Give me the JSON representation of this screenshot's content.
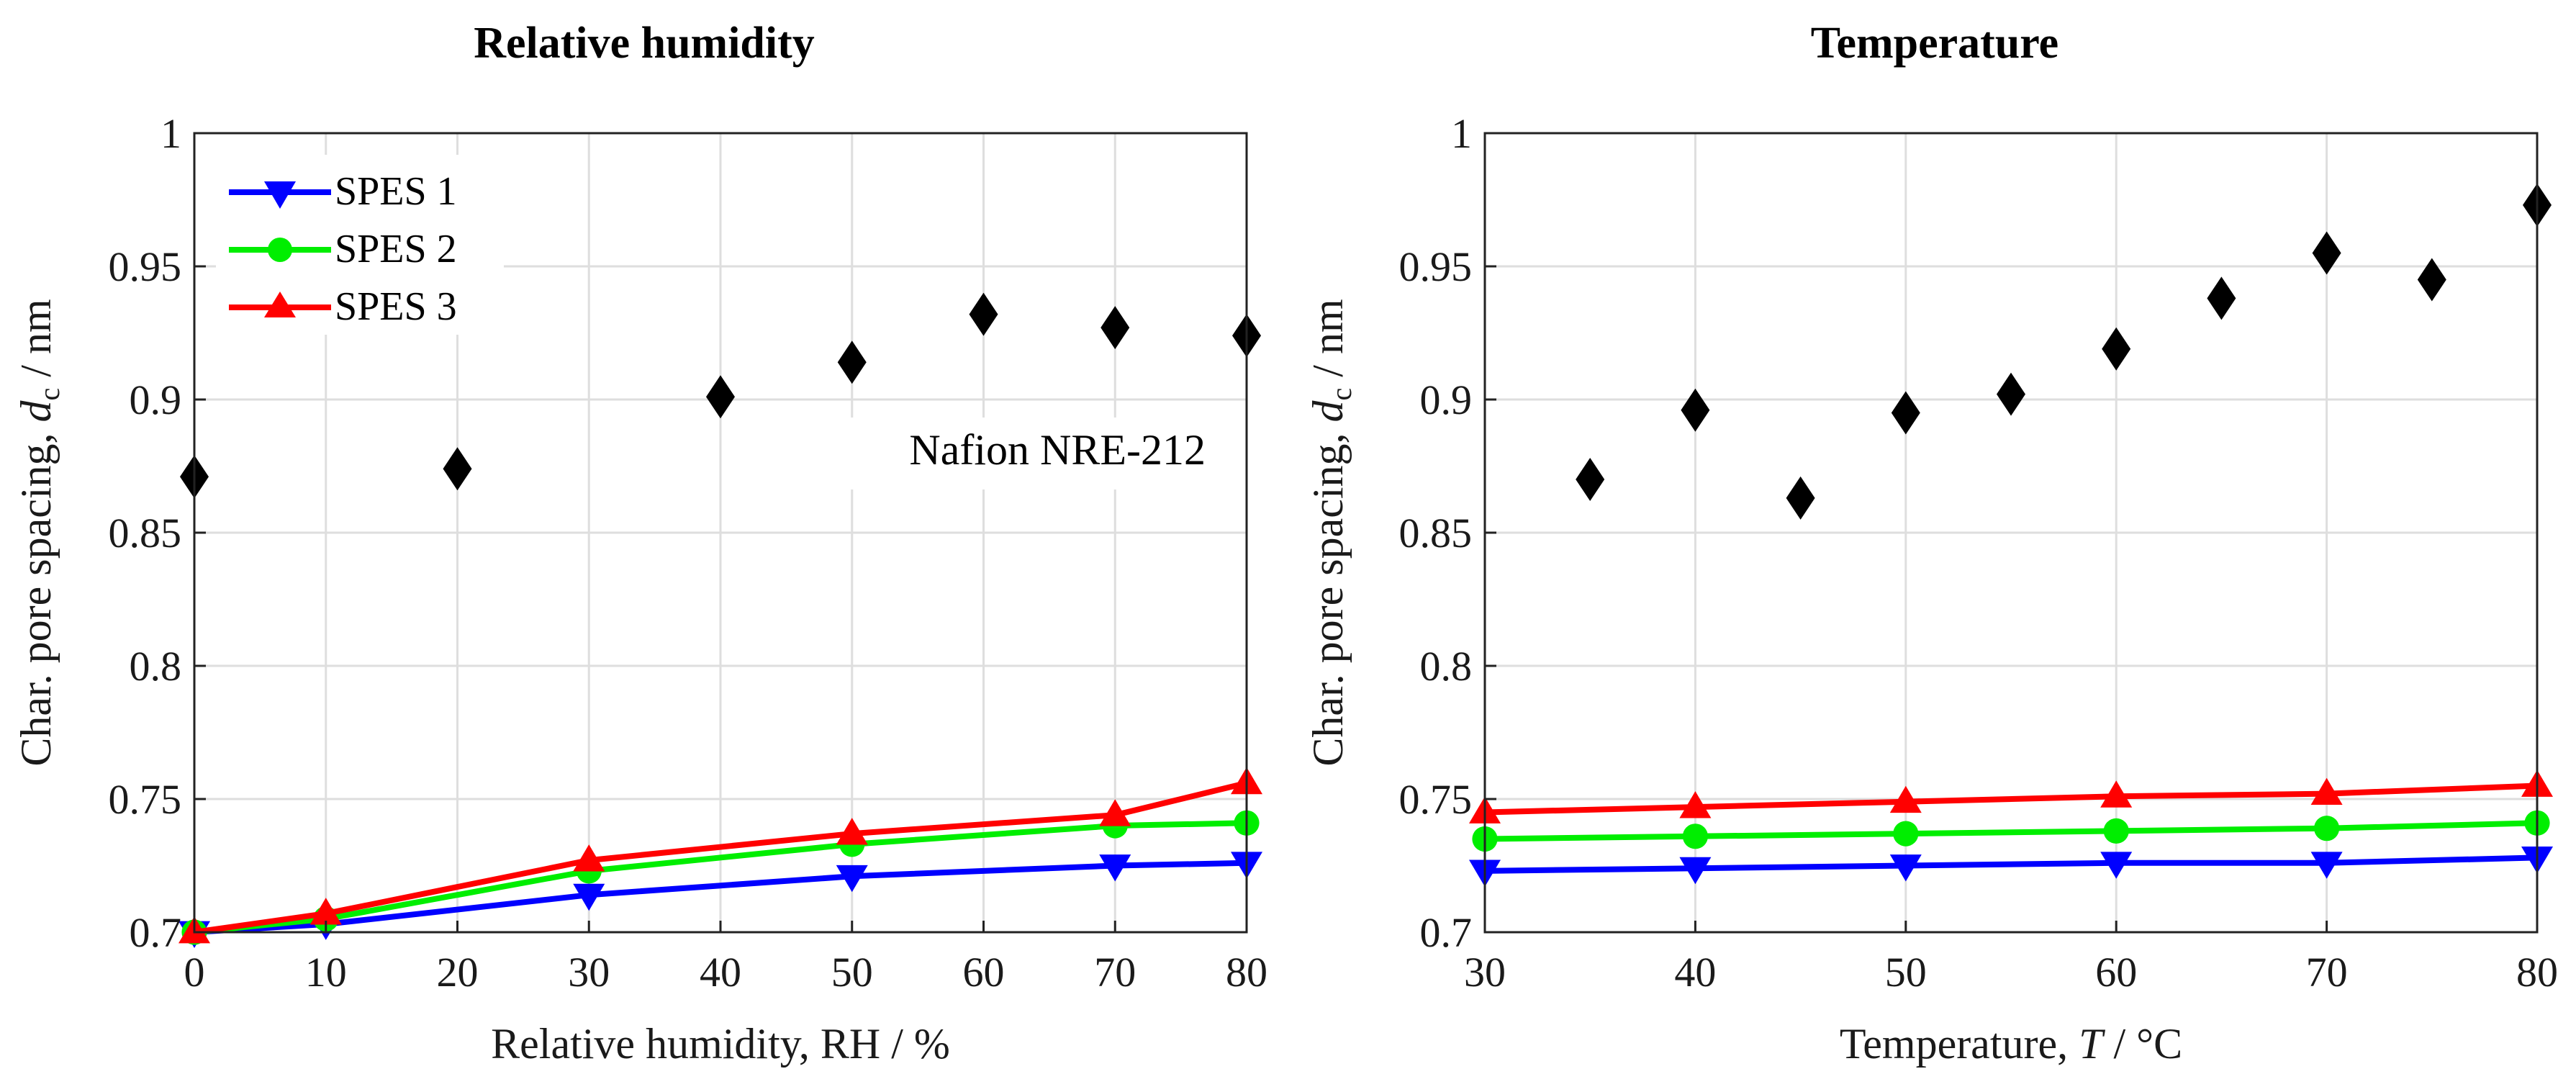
{
  "chart_data": [
    {
      "type": "line",
      "title": "Relative humidity",
      "xlabel": "Relative humidity, RH / %",
      "ylabel_main": "Char. pore spacing, ",
      "ylabel_var": "d",
      "ylabel_sub": "c",
      "ylabel_unit": " / nm",
      "xlim": [
        0,
        80
      ],
      "ylim": [
        0.7,
        1.0
      ],
      "xticks": [
        0,
        10,
        20,
        30,
        40,
        50,
        60,
        70,
        80
      ],
      "yticks": [
        0.7,
        0.75,
        0.8,
        0.85,
        0.9,
        0.95,
        1.0
      ],
      "ytick_labels": [
        "0.7",
        "0.75",
        "0.8",
        "0.85",
        "0.9",
        "0.95",
        "1"
      ],
      "grid": true,
      "legend": "top-left",
      "series": [
        {
          "name": "SPES 1",
          "color": "#0000ff",
          "marker": "triangle-down",
          "x": [
            0,
            10,
            30,
            50,
            70,
            80
          ],
          "y": [
            0.7,
            0.703,
            0.714,
            0.721,
            0.725,
            0.726
          ]
        },
        {
          "name": "SPES 2",
          "color": "#00ee00",
          "marker": "circle",
          "x": [
            0,
            10,
            30,
            50,
            70,
            80
          ],
          "y": [
            0.7,
            0.705,
            0.723,
            0.733,
            0.74,
            0.741
          ]
        },
        {
          "name": "SPES 3",
          "color": "#ff0000",
          "marker": "triangle-up",
          "x": [
            0,
            10,
            30,
            50,
            70,
            80
          ],
          "y": [
            0.7,
            0.707,
            0.727,
            0.737,
            0.744,
            0.756
          ]
        },
        {
          "name": "Nafion NRE-212",
          "color": "#000000",
          "marker": "diamond",
          "line": false,
          "x": [
            0,
            20,
            40,
            50,
            60,
            70,
            80
          ],
          "y": [
            0.871,
            0.874,
            0.901,
            0.914,
            0.932,
            0.927,
            0.924
          ]
        }
      ],
      "annotation": "Nafion NRE-212"
    },
    {
      "type": "line",
      "title": "Temperature",
      "xlabel_main": "Temperature, ",
      "xlabel_var": "T",
      "xlabel_unit": " / °C",
      "ylabel_main": "Char. pore spacing, ",
      "ylabel_var": "d",
      "ylabel_sub": "c",
      "ylabel_unit": " / nm",
      "xlim": [
        30,
        80
      ],
      "ylim": [
        0.7,
        1.0
      ],
      "xticks": [
        30,
        40,
        50,
        60,
        70,
        80
      ],
      "yticks": [
        0.7,
        0.75,
        0.8,
        0.85,
        0.9,
        0.95,
        1.0
      ],
      "ytick_labels": [
        "0.7",
        "0.75",
        "0.8",
        "0.85",
        "0.9",
        "0.95",
        "1"
      ],
      "grid": true,
      "series": [
        {
          "name": "SPES 1",
          "color": "#0000ff",
          "marker": "triangle-down",
          "x": [
            30,
            40,
            50,
            60,
            70,
            80
          ],
          "y": [
            0.723,
            0.724,
            0.725,
            0.726,
            0.726,
            0.728
          ]
        },
        {
          "name": "SPES 2",
          "color": "#00ee00",
          "marker": "circle",
          "x": [
            30,
            40,
            50,
            60,
            70,
            80
          ],
          "y": [
            0.735,
            0.736,
            0.737,
            0.738,
            0.739,
            0.741
          ]
        },
        {
          "name": "SPES 3",
          "color": "#ff0000",
          "marker": "triangle-up",
          "x": [
            30,
            40,
            50,
            60,
            70,
            80
          ],
          "y": [
            0.745,
            0.747,
            0.749,
            0.751,
            0.752,
            0.755
          ]
        },
        {
          "name": "Nafion NRE-212",
          "color": "#000000",
          "marker": "diamond",
          "line": false,
          "x": [
            35,
            40,
            45,
            50,
            55,
            60,
            65,
            70,
            75,
            80
          ],
          "y": [
            0.87,
            0.896,
            0.863,
            0.895,
            0.902,
            0.919,
            0.938,
            0.955,
            0.945,
            0.973
          ]
        }
      ]
    }
  ]
}
